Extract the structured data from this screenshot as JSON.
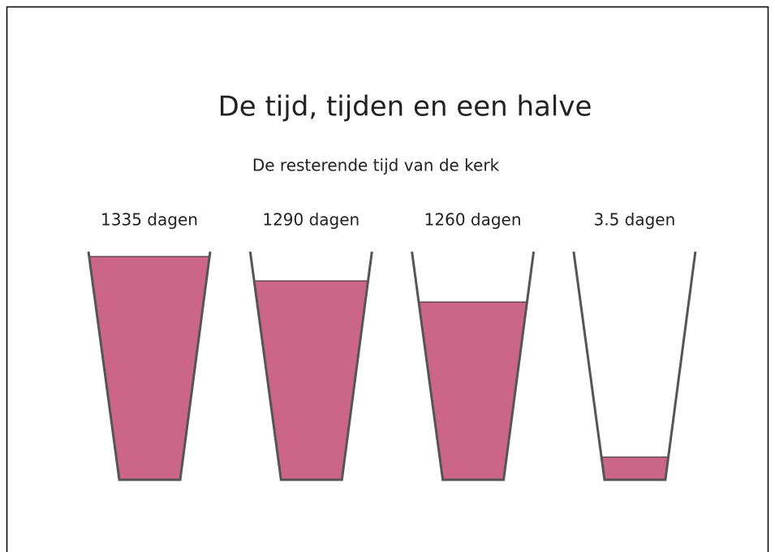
{
  "title": "De tijd, tijden en een halve",
  "subtitle": "De resterende tijd van de kerk",
  "glasses": [
    {
      "label": "1335 dagen"
    },
    {
      "label": "1290 dagen"
    },
    {
      "label": "1260 dagen"
    },
    {
      "label": "3.5 dagen"
    }
  ]
}
